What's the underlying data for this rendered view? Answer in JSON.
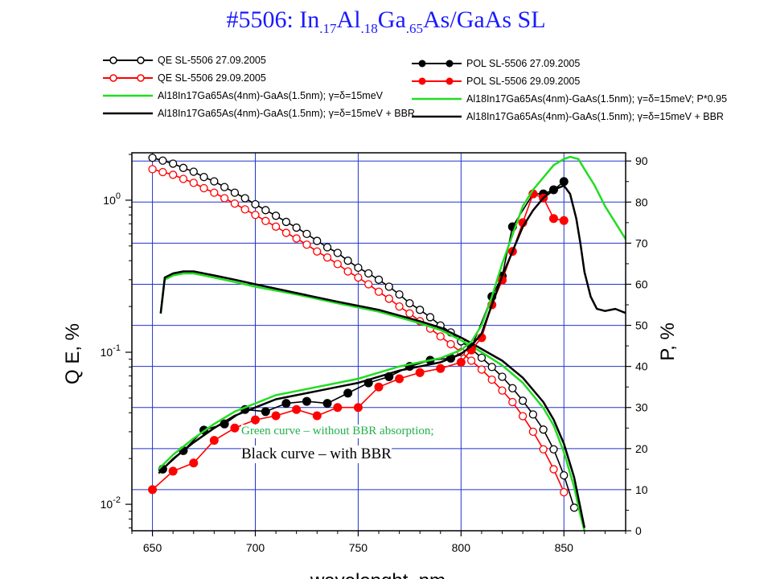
{
  "title": {
    "prefix": "#5506: In",
    "sub1": ".17",
    "mid1": "Al",
    "sub2": ".18",
    "mid2": "Ga",
    "sub3": ".65",
    "suffix": "As/GaAs  SL"
  },
  "legend_left": [
    {
      "text": "QE SL-5506 27.09.2005",
      "color": "#000000",
      "marker": "open-circle"
    },
    {
      "text": "QE SL-5506 29.09.2005",
      "color": "#ff0000",
      "marker": "open-circle"
    },
    {
      "text": "Al18In17Ga65As(4nm)-GaAs(1.5nm); γ=δ=15meV",
      "color": "#22dd22",
      "marker": "none"
    },
    {
      "text": "Al18In17Ga65As(4nm)-GaAs(1.5nm); γ=δ=15meV + BBR",
      "color": "#000000",
      "marker": "none"
    }
  ],
  "legend_right": [
    {
      "text": "POL SL-5506 27.09.2005",
      "color": "#000000",
      "marker": "filled-circle"
    },
    {
      "text": "POL SL-5506 29.09.2005",
      "color": "#ff0000",
      "marker": "filled-circle"
    },
    {
      "text": "Al18In17Ga65As(4nm)-GaAs(1.5nm); γ=δ=15meV; P*0.95",
      "color": "#22dd22",
      "marker": "none"
    },
    {
      "text": "Al18In17Ga65As(4nm)-GaAs(1.5nm); γ=δ=15meV + BBR",
      "color": "#000000",
      "marker": "none"
    }
  ],
  "notes": {
    "green": "Green curve – without BBR absorption;",
    "black": "Black curve – with BBR"
  },
  "chart_data": {
    "type": "line",
    "xlabel": "wavelenght, nm",
    "ylabel_left": "Q E, %",
    "ylabel_right": "P, %",
    "xlim": [
      640,
      880
    ],
    "ylim_left": [
      0.0067,
      2.05
    ],
    "yscale_left": "log",
    "ylim_right": [
      0,
      92
    ],
    "grid": true,
    "x_ticks": [
      "650",
      "700",
      "750",
      "800",
      "850"
    ],
    "y_left_ticks": [
      "10-2",
      "10-1",
      "100"
    ],
    "y_right_ticks": [
      "0",
      "10",
      "20",
      "30",
      "40",
      "50",
      "60",
      "70",
      "80",
      "90"
    ],
    "series": [
      {
        "name": "QE SL-5506 27.09.2005",
        "axis": "left",
        "color": "#000000",
        "marker": "open-circle",
        "x": [
          650,
          655,
          660,
          665,
          670,
          675,
          680,
          685,
          690,
          695,
          700,
          705,
          710,
          715,
          720,
          725,
          730,
          735,
          740,
          745,
          750,
          755,
          760,
          765,
          770,
          775,
          780,
          785,
          790,
          795,
          800,
          805,
          810,
          815,
          820,
          825,
          830,
          835,
          840,
          845,
          850,
          855
        ],
        "y": [
          1.9,
          1.82,
          1.74,
          1.63,
          1.54,
          1.42,
          1.33,
          1.22,
          1.12,
          1.03,
          0.94,
          0.86,
          0.79,
          0.72,
          0.66,
          0.6,
          0.54,
          0.49,
          0.45,
          0.4,
          0.36,
          0.33,
          0.3,
          0.27,
          0.24,
          0.21,
          0.19,
          0.17,
          0.15,
          0.135,
          0.118,
          0.105,
          0.092,
          0.08,
          0.069,
          0.058,
          0.048,
          0.039,
          0.031,
          0.023,
          0.0155,
          0.0095
        ]
      },
      {
        "name": "QE SL-5506 29.09.2005",
        "axis": "left",
        "color": "#ff0000",
        "marker": "open-circle",
        "x": [
          650,
          655,
          660,
          665,
          670,
          675,
          680,
          685,
          690,
          695,
          700,
          705,
          710,
          715,
          720,
          725,
          730,
          735,
          740,
          745,
          750,
          755,
          760,
          765,
          770,
          775,
          780,
          785,
          790,
          795,
          800,
          805,
          810,
          815,
          820,
          825,
          830,
          835,
          840,
          845,
          850
        ],
        "y": [
          1.6,
          1.53,
          1.47,
          1.38,
          1.3,
          1.2,
          1.12,
          1.03,
          0.95,
          0.87,
          0.8,
          0.73,
          0.67,
          0.61,
          0.56,
          0.51,
          0.46,
          0.42,
          0.38,
          0.34,
          0.31,
          0.28,
          0.25,
          0.225,
          0.2,
          0.18,
          0.16,
          0.143,
          0.127,
          0.113,
          0.1,
          0.088,
          0.077,
          0.066,
          0.056,
          0.047,
          0.038,
          0.03,
          0.023,
          0.017,
          0.012
        ]
      },
      {
        "name": "Al18In17Ga65As(4nm)-GaAs(1.5nm); γ=δ=15meV",
        "axis": "left",
        "color": "#22dd22",
        "marker": "none",
        "x": [
          654,
          656,
          660,
          665,
          670,
          680,
          690,
          700,
          720,
          740,
          760,
          780,
          790,
          800,
          805,
          810,
          820,
          830,
          840,
          845,
          850,
          855,
          858,
          860
        ],
        "y": [
          0.18,
          0.3,
          0.32,
          0.33,
          0.33,
          0.31,
          0.29,
          0.27,
          0.24,
          0.21,
          0.185,
          0.155,
          0.14,
          0.12,
          0.11,
          0.1,
          0.082,
          0.063,
          0.043,
          0.033,
          0.022,
          0.013,
          0.0085,
          0.0067
        ]
      },
      {
        "name": "Al18In17Ga65As(4nm)-GaAs(1.5nm); γ=δ=15meV + BBR",
        "axis": "left",
        "color": "#000000",
        "marker": "none",
        "x": [
          654,
          656,
          660,
          665,
          670,
          680,
          690,
          700,
          720,
          740,
          760,
          780,
          790,
          800,
          805,
          810,
          820,
          830,
          840,
          845,
          850,
          855,
          858,
          860
        ],
        "y": [
          0.18,
          0.31,
          0.33,
          0.34,
          0.34,
          0.32,
          0.3,
          0.28,
          0.245,
          0.215,
          0.19,
          0.16,
          0.145,
          0.125,
          0.115,
          0.105,
          0.088,
          0.068,
          0.047,
          0.036,
          0.025,
          0.015,
          0.0095,
          0.007
        ]
      },
      {
        "name": "POL SL-5506 27.09.2005",
        "axis": "right",
        "color": "#000000",
        "marker": "filled-circle",
        "x": [
          655,
          665,
          675,
          685,
          695,
          705,
          715,
          725,
          735,
          745,
          755,
          765,
          775,
          785,
          795,
          805,
          815,
          820,
          825,
          835,
          840,
          845,
          850
        ],
        "y": [
          15,
          19.5,
          24.5,
          26,
          29.5,
          29,
          31,
          31.5,
          31,
          33.5,
          36,
          37.5,
          40,
          41.5,
          42,
          44.5,
          57,
          62,
          74,
          82,
          82,
          83,
          85
        ]
      },
      {
        "name": "POL SL-5506 29.09.2005",
        "axis": "right",
        "color": "#ff0000",
        "marker": "filled-circle",
        "x": [
          650,
          660,
          670,
          680,
          690,
          700,
          710,
          720,
          730,
          740,
          750,
          760,
          770,
          780,
          790,
          800,
          805,
          810,
          815,
          820,
          825,
          830,
          835,
          840,
          845,
          850
        ],
        "y": [
          10,
          14.5,
          16.5,
          22,
          25,
          27,
          28,
          29.5,
          28,
          30,
          30,
          35,
          37,
          38.5,
          39.5,
          41,
          44,
          47,
          55,
          61,
          68,
          75,
          82,
          81,
          76,
          75.5
        ]
      },
      {
        "name": "Al18In17Ga65As(4nm)-GaAs(1.5nm); γ=δ=15meV; P*0.95",
        "axis": "right",
        "color": "#22dd22",
        "marker": "none",
        "x": [
          653,
          660,
          670,
          680,
          690,
          700,
          710,
          720,
          730,
          740,
          750,
          760,
          770,
          780,
          790,
          800,
          805,
          810,
          815,
          820,
          825,
          830,
          835,
          840,
          845,
          850,
          853,
          857,
          860,
          865,
          870,
          875,
          880
        ],
        "y": [
          15,
          18.5,
          22.5,
          26,
          29,
          31,
          33,
          34,
          35,
          36,
          37,
          38.5,
          40,
          41,
          42,
          44,
          46,
          50,
          57,
          65,
          72,
          79,
          83,
          86,
          89,
          90.5,
          91,
          90.5,
          88,
          84,
          79,
          75,
          71
        ]
      },
      {
        "name": "Al18In17Ga65As(4nm)-GaAs(1.5nm); γ=δ=15meV + BBR",
        "axis": "right",
        "color": "#000000",
        "marker": "none",
        "x": [
          653,
          660,
          670,
          680,
          690,
          700,
          710,
          720,
          730,
          740,
          750,
          760,
          770,
          780,
          790,
          800,
          805,
          810,
          815,
          820,
          825,
          830,
          835,
          840,
          845,
          850,
          853,
          856,
          858,
          860,
          863,
          866,
          870,
          875,
          880
        ],
        "y": [
          14,
          17.5,
          21.5,
          25,
          28,
          30,
          32,
          33,
          34,
          35,
          36,
          37.5,
          39,
          40,
          41,
          43,
          45,
          48,
          55,
          62,
          68,
          74,
          78,
          81,
          83,
          84,
          82,
          76,
          70,
          63,
          57,
          54,
          53.5,
          54,
          53
        ]
      }
    ]
  }
}
